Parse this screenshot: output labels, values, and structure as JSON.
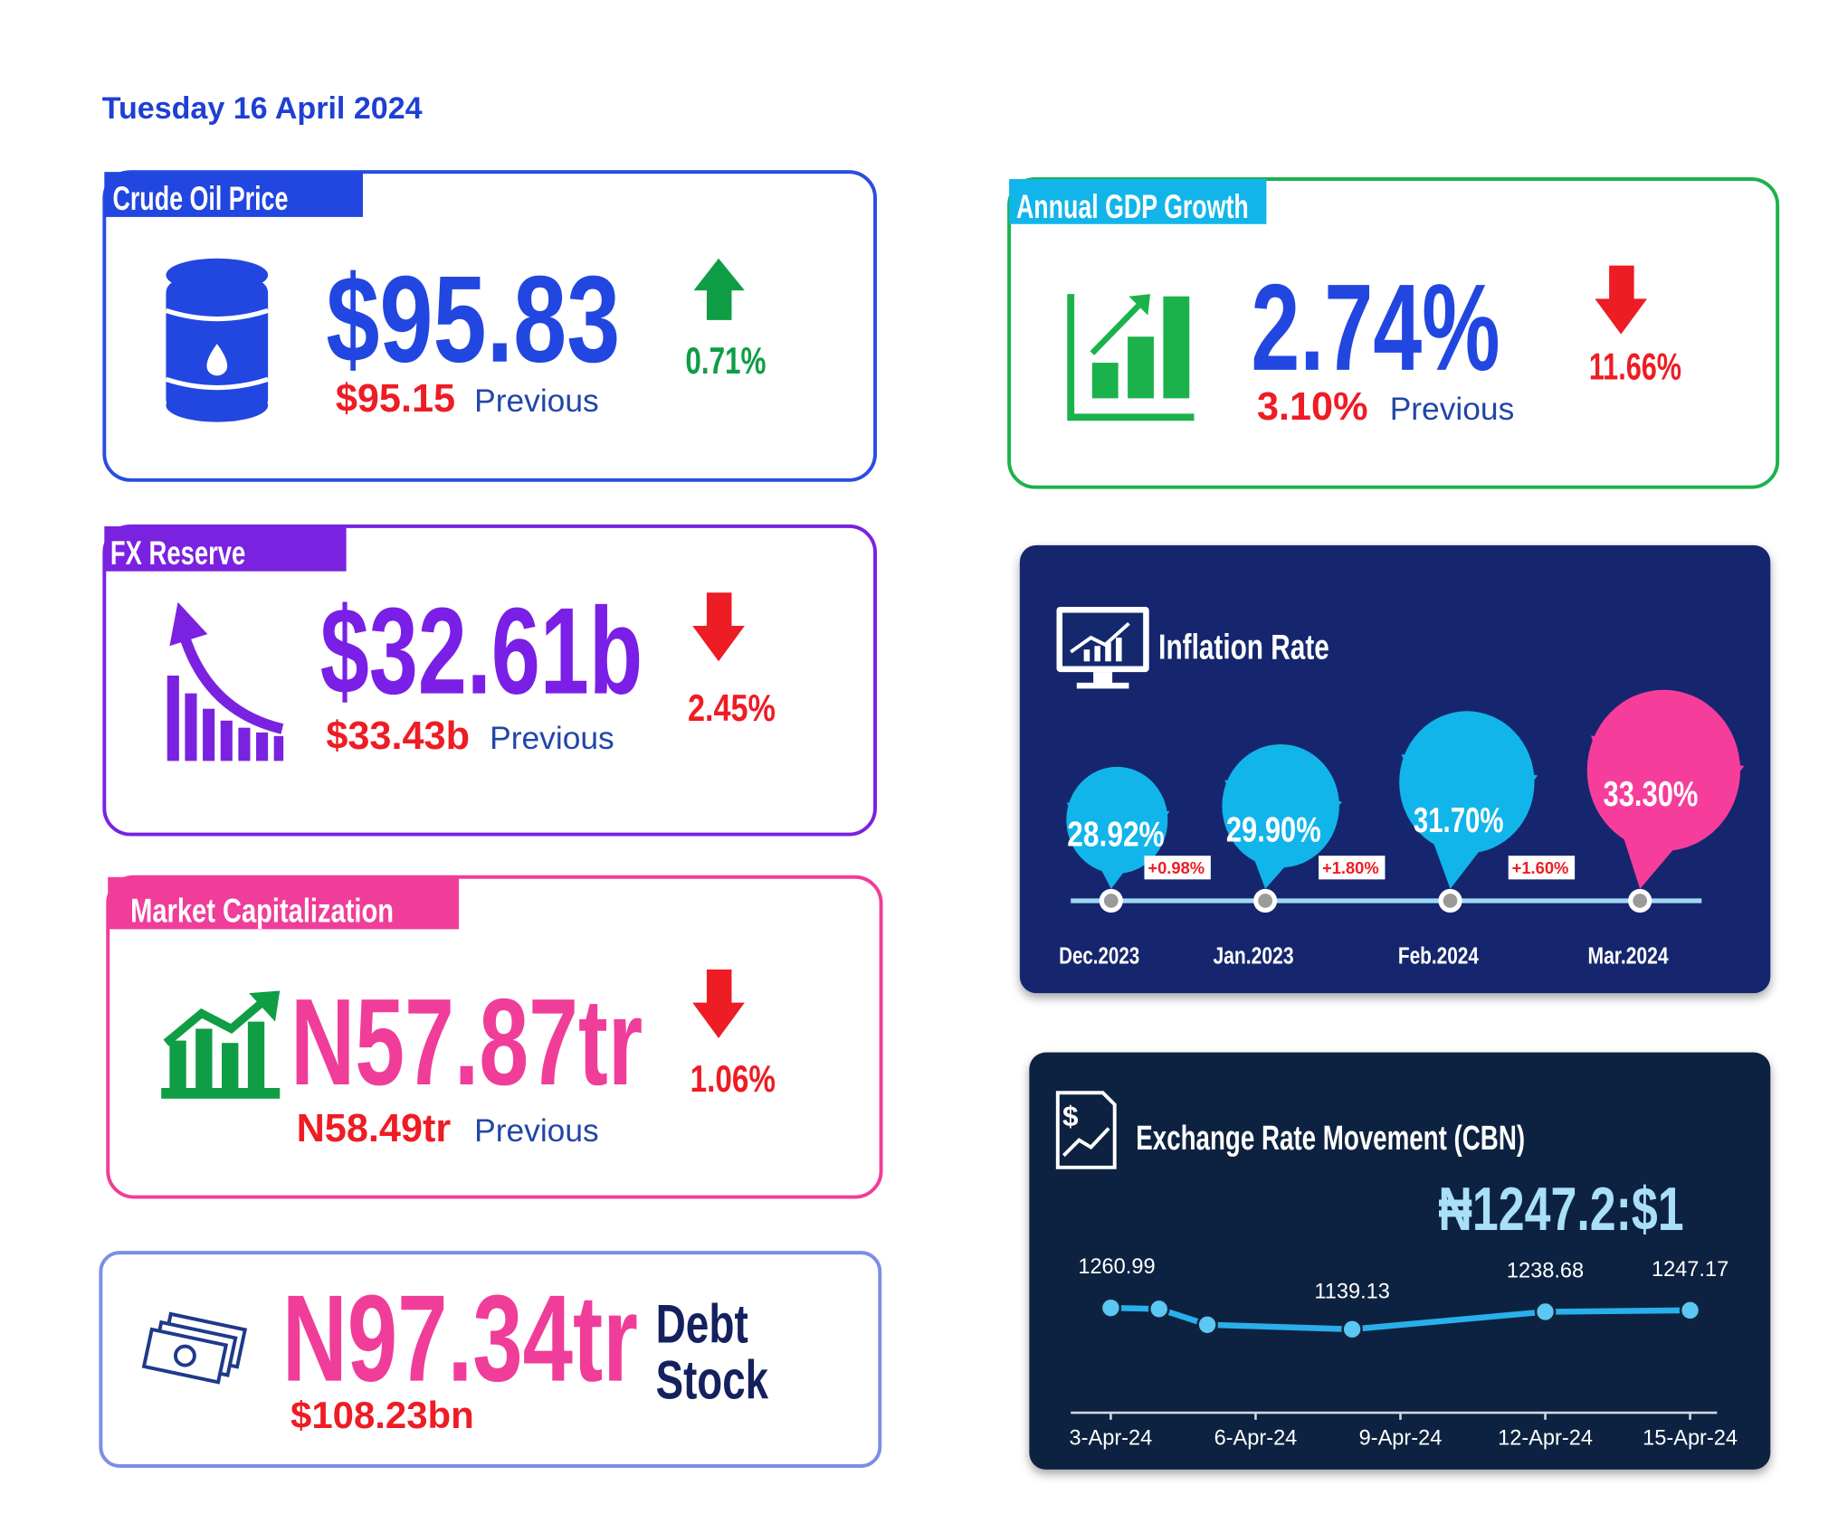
{
  "date": "Tuesday 16 April 2024",
  "cards": [
    {
      "title": "Crude Oil Price",
      "value": "$95.83",
      "change": "0.71%",
      "previous": "$95.15",
      "previous_label": "Previous"
    },
    {
      "title": "Annual GDP Growth",
      "value": "2.74%",
      "change": "11.66%",
      "previous": "3.10%",
      "previous_label": "Previous"
    },
    {
      "title": "FX Reserve",
      "value": "$32.61b",
      "change": "2.45%",
      "previous": "$33.43b",
      "previous_label": "Previous"
    },
    {
      "title": "Market Capitalization",
      "value": "N57.87tr",
      "change": "1.06%",
      "previous": "N58.49tr",
      "previous_label": "Previous"
    }
  ],
  "debt": {
    "value": "N97.34tr",
    "label_line1": "Debt",
    "label_line2": "Stock",
    "usd": "$108.23bn"
  },
  "inflation": {
    "title": "Inflation Rate",
    "months": [
      "Dec.2023",
      "Jan.2023",
      "Feb.2024",
      "Mar.2024"
    ],
    "rates": [
      "28.92%",
      "29.90%",
      "31.70%",
      "33.30%"
    ],
    "changes": [
      "+0.98%",
      "+1.80%",
      "+1.60%"
    ]
  },
  "chart_data": {
    "type": "line",
    "title": "Exchange Rate Movement (CBN)",
    "subtitle": "₦1247.2:$1",
    "x": [
      "3-Apr-24",
      "4-Apr-24",
      "5-Apr-24",
      "8-Apr-24",
      "12-Apr-24",
      "15-Apr-24"
    ],
    "values": [
      1260.99,
      1255,
      1165,
      1139.13,
      1238.68,
      1247.17
    ],
    "value_labels": [
      "1260.99",
      null,
      null,
      "1139.13",
      "1238.68",
      "1247.17"
    ],
    "color": "#29b0ea",
    "xlim": [
      "2-Apr-24",
      "16-Apr-24"
    ],
    "xticks": [
      "3-Apr-24",
      "6-Apr-24",
      "9-Apr-24",
      "12-Apr-24",
      "15-Apr-24"
    ],
    "ylim": [
      900,
      1400
    ]
  }
}
